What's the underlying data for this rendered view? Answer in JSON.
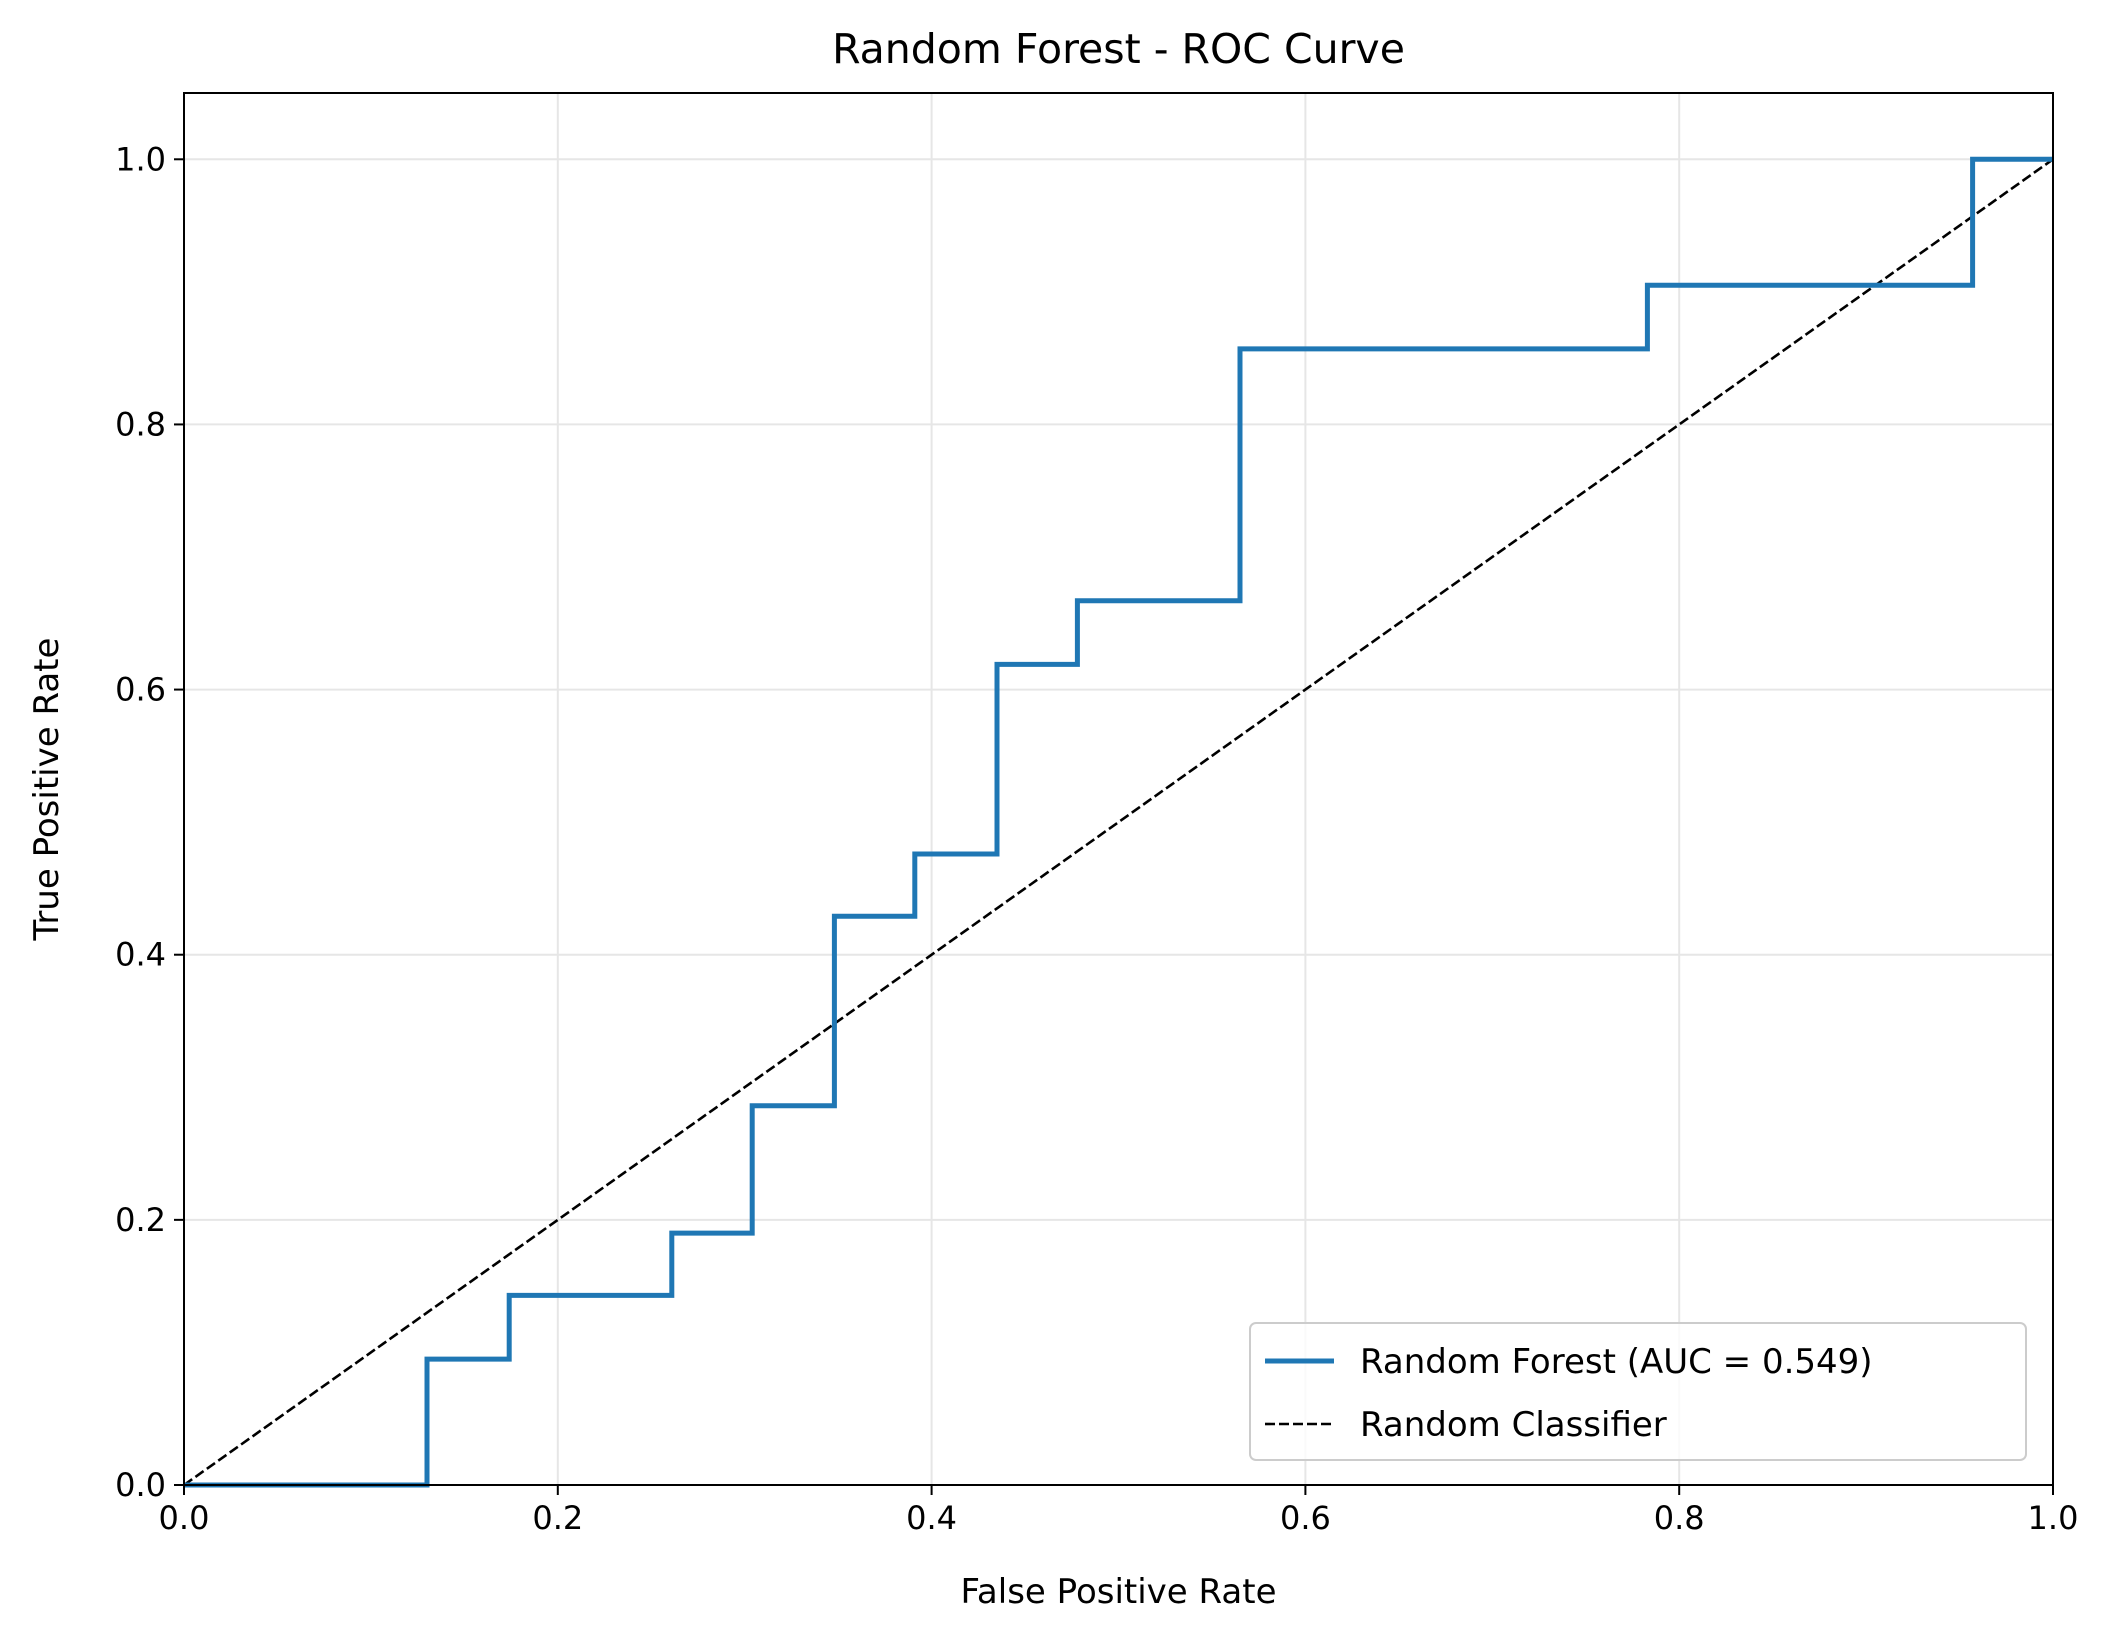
{
  "chart_data": {
    "type": "line",
    "title": "Random Forest - ROC Curve",
    "xlabel": "False Positive Rate",
    "ylabel": "True Positive Rate",
    "xlim": [
      0.0,
      1.0
    ],
    "ylim": [
      0.0,
      1.05
    ],
    "xticks": [
      0.0,
      0.2,
      0.4,
      0.6,
      0.8,
      1.0
    ],
    "xtick_labels": [
      "0.0",
      "0.2",
      "0.4",
      "0.6",
      "0.8",
      "1.0"
    ],
    "yticks": [
      0.0,
      0.2,
      0.4,
      0.6,
      0.8,
      1.0
    ],
    "ytick_labels": [
      "0.0",
      "0.2",
      "0.4",
      "0.6",
      "0.8",
      "1.0"
    ],
    "grid": true,
    "legend_position": "lower-right",
    "series": [
      {
        "name": "Random Forest (AUC = 0.549)",
        "color": "#1f77b4",
        "style": "solid",
        "x": [
          0.0,
          0.13,
          0.13,
          0.174,
          0.174,
          0.261,
          0.261,
          0.304,
          0.304,
          0.348,
          0.348,
          0.391,
          0.391,
          0.435,
          0.435,
          0.478,
          0.478,
          0.565,
          0.565,
          0.783,
          0.783,
          0.957,
          0.957,
          1.0
        ],
        "y": [
          0.0,
          0.0,
          0.095,
          0.095,
          0.143,
          0.143,
          0.19,
          0.19,
          0.286,
          0.286,
          0.429,
          0.429,
          0.476,
          0.476,
          0.619,
          0.619,
          0.667,
          0.667,
          0.857,
          0.857,
          0.905,
          0.905,
          1.0,
          1.0
        ]
      },
      {
        "name": "Random Classifier",
        "color": "#000000",
        "style": "dashed",
        "x": [
          0.0,
          1.0
        ],
        "y": [
          0.0,
          1.0
        ]
      }
    ]
  }
}
